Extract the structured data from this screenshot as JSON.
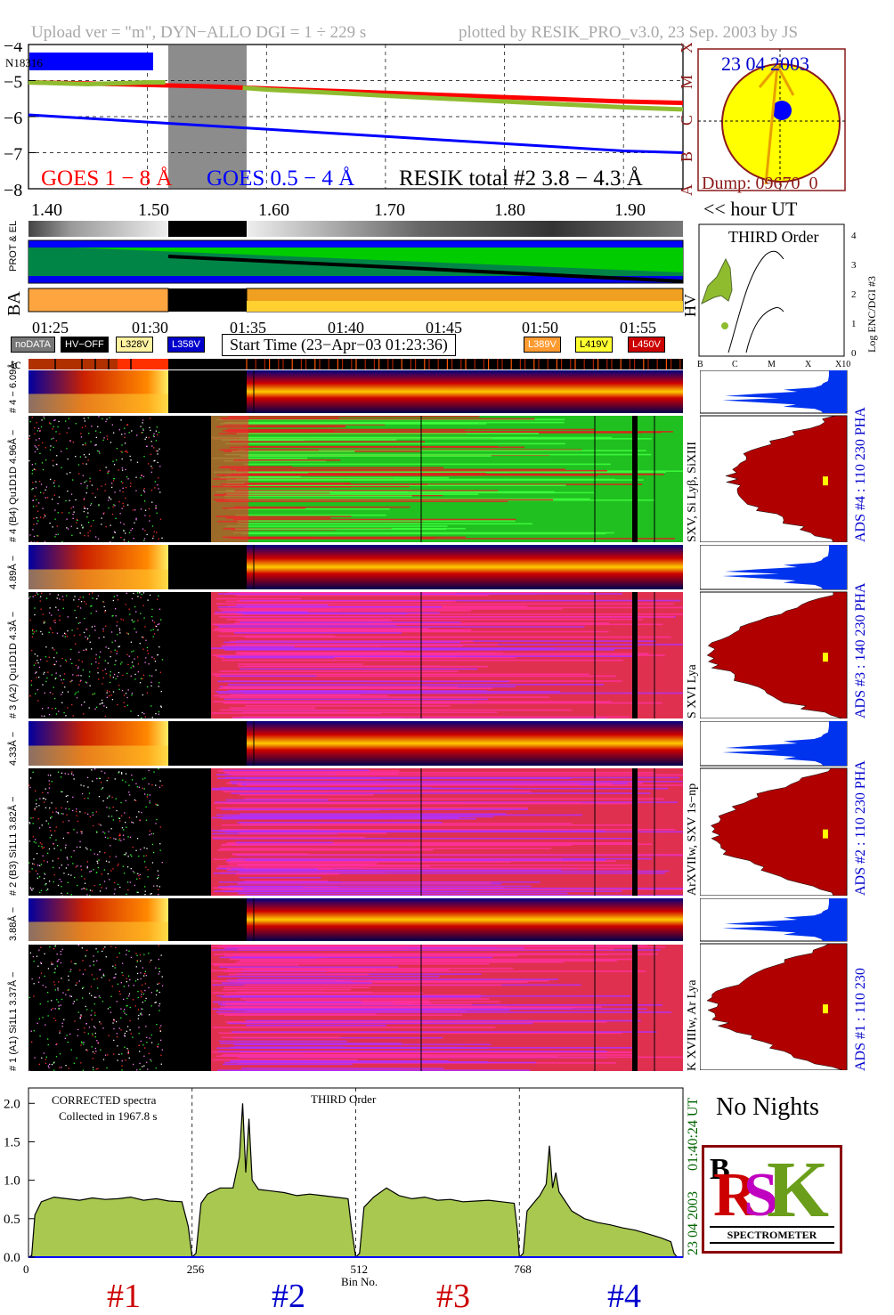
{
  "header": {
    "left": "Upload ver = \"m\", DYN−ALLO DGI =   1 ÷ 229 s",
    "right": "plotted by RESIK_PRO_v3.0, 23 Sep. 2003 by JS"
  },
  "goes": {
    "goes1_label": "GOES 1 − 8 Å",
    "goes2_label": "GOES 0.5 − 4 Å",
    "resik_label": "RESIK total #2  3.8 − 4.3 Å",
    "n_label": "N18316",
    "ylim": [
      -8,
      -4
    ],
    "yticks": [
      "−4",
      "−5",
      "−6",
      "−7",
      "−8"
    ],
    "class_labels": [
      "X",
      "M",
      "C",
      "B",
      "A"
    ],
    "colors": {
      "goes1": "#ff0000",
      "goes2": "#0000ff",
      "resik": "#8fbc2f"
    }
  },
  "sun": {
    "date": "23 04 2003",
    "dump": "Dump: 09670_0"
  },
  "time_axis": {
    "hour_ticks": [
      "1.40",
      "1.50",
      "1.60",
      "1.70",
      "1.80",
      "1.90"
    ],
    "hour_unit_label": "<< hour UT",
    "clock_ticks": [
      "01:25",
      "01:30",
      "01:35",
      "01:40",
      "01:45",
      "01:50",
      "01:55"
    ]
  },
  "side_labels": {
    "prot_el": "PROT & EL",
    "ba": "BA",
    "hv": "HV",
    "tc": "tc"
  },
  "legend": {
    "nodata": "noDATA",
    "hvoff": "HV−OFF",
    "v328": "L328V",
    "v358": "L358V",
    "start_time": "Start Time (23−Apr−03 01:23:36)",
    "v389": "L389V",
    "v419": "L419V",
    "v450": "L450V"
  },
  "third_order": {
    "title": "THIRD Order",
    "ylabel": "Log ENC/DGI #3",
    "yticks": [
      "0",
      "1",
      "2",
      "3",
      "4"
    ],
    "xticks": [
      "B",
      "C",
      "M",
      "X",
      "X10"
    ]
  },
  "channels": [
    {
      "pha_label": "# 4 − 6.09Å",
      "ads_label": "# 4 (B4) Qu1D1D 4.96Å − ",
      "lines": "SXV, Si Lyβ, SiXIII",
      "ads": "ADS #4 :  110 230  PHA"
    },
    {
      "pha_label": "4.89Å −",
      "ads_label": "# 3 (A2) Qu1D1D 4.3Å −",
      "lines": "S XVI Lya",
      "ads": "ADS #3 :  140 230  PHA"
    },
    {
      "pha_label": "4.33Å −",
      "ads_label": "# 2 (B3) Si1L1 3.82Å −",
      "lines": "ArXVIIw, SXV 1s−np",
      "ads": "ADS #2 :  110 230  PHA"
    },
    {
      "pha_label": "3.88Å −",
      "ads_label": "# 1 (A1) Si1L1 3.37Å −",
      "lines": "K XVIIIw, Ar Lya",
      "ads": "ADS #1 :  110 230"
    }
  ],
  "corrected": {
    "line1": "CORRECTED spectra",
    "line2": "Collected in   1967.8 s",
    "order": "THIRD Order",
    "time_label": "01:40:24 UT",
    "date_label": "23 04 2003",
    "xlabel": "Bin No.",
    "xticks": [
      "0",
      "256",
      "512",
      "768"
    ],
    "channel_labels": [
      "#1",
      "#2",
      "#3",
      "#4"
    ],
    "channel_colors": [
      "#cc0000",
      "#0000cc",
      "#cc0000",
      "#0000cc"
    ]
  },
  "no_nights": "No Nights",
  "logo": {
    "spectrometer": "SPECTROMETER"
  },
  "chart_data": {
    "type": "line",
    "title": "CORRECTED spectra",
    "xlabel": "Bin No.",
    "ylabel": "",
    "xlim": [
      0,
      1024
    ],
    "ylim": [
      0,
      2.2
    ],
    "yticks": [
      "0.0",
      "0.5",
      "1.0",
      "1.5",
      "2.0"
    ],
    "xticks": [
      0,
      256,
      512,
      768
    ],
    "series": [
      {
        "name": "#1",
        "x": [
          0,
          5,
          10,
          20,
          40,
          60,
          80,
          100,
          120,
          140,
          160,
          180,
          200,
          220,
          240,
          250,
          256
        ],
        "values": [
          0.0,
          0.02,
          0.55,
          0.72,
          0.78,
          0.76,
          0.74,
          0.77,
          0.75,
          0.76,
          0.78,
          0.74,
          0.76,
          0.73,
          0.72,
          0.4,
          0.0
        ]
      },
      {
        "name": "#2",
        "x": [
          256,
          262,
          270,
          280,
          300,
          320,
          330,
          335,
          340,
          345,
          350,
          360,
          380,
          400,
          420,
          440,
          460,
          480,
          500,
          505,
          512
        ],
        "values": [
          0.0,
          0.05,
          0.7,
          0.82,
          0.9,
          0.9,
          1.3,
          2.0,
          1.1,
          1.8,
          1.0,
          0.88,
          0.86,
          0.84,
          0.8,
          0.82,
          0.8,
          0.78,
          0.76,
          0.4,
          0.0
        ]
      },
      {
        "name": "#3",
        "x": [
          512,
          518,
          525,
          540,
          560,
          580,
          600,
          620,
          640,
          660,
          680,
          700,
          720,
          740,
          760,
          765,
          768
        ],
        "values": [
          0.0,
          0.05,
          0.65,
          0.78,
          0.9,
          0.8,
          0.76,
          0.78,
          0.74,
          0.75,
          0.72,
          0.73,
          0.74,
          0.72,
          0.7,
          0.35,
          0.0
        ]
      },
      {
        "name": "#4",
        "x": [
          768,
          774,
          780,
          790,
          800,
          810,
          815,
          820,
          825,
          830,
          850,
          870,
          890,
          910,
          930,
          950,
          970,
          990,
          1005,
          1010,
          1015
        ],
        "values": [
          0.0,
          0.05,
          0.6,
          0.7,
          0.8,
          0.95,
          1.45,
          0.9,
          1.1,
          0.85,
          0.6,
          0.5,
          0.45,
          0.42,
          0.38,
          0.35,
          0.3,
          0.25,
          0.2,
          0.05,
          0.0
        ]
      }
    ],
    "goes_lightcurves": {
      "x_hours": [
        1.4,
        1.45,
        1.5,
        1.55,
        1.6,
        1.65,
        1.7,
        1.75,
        1.8,
        1.85,
        1.9,
        1.95
      ],
      "goes_1_8": [
        -5.05,
        -5.08,
        -5.12,
        -5.16,
        -5.22,
        -5.28,
        -5.34,
        -5.4,
        -5.46,
        -5.52,
        -5.58,
        -5.62
      ],
      "goes_05_4": [
        -5.95,
        -6.05,
        -6.15,
        -6.25,
        -6.35,
        -6.45,
        -6.55,
        -6.65,
        -6.75,
        -6.85,
        -6.95,
        -7.0
      ],
      "resik_2": [
        -5.05,
        -5.1,
        -5.05,
        null,
        -5.25,
        -5.33,
        -5.42,
        -5.5,
        -5.58,
        -5.66,
        -5.74,
        -5.8
      ],
      "gap_hours": [
        1.515,
        1.58
      ]
    }
  }
}
